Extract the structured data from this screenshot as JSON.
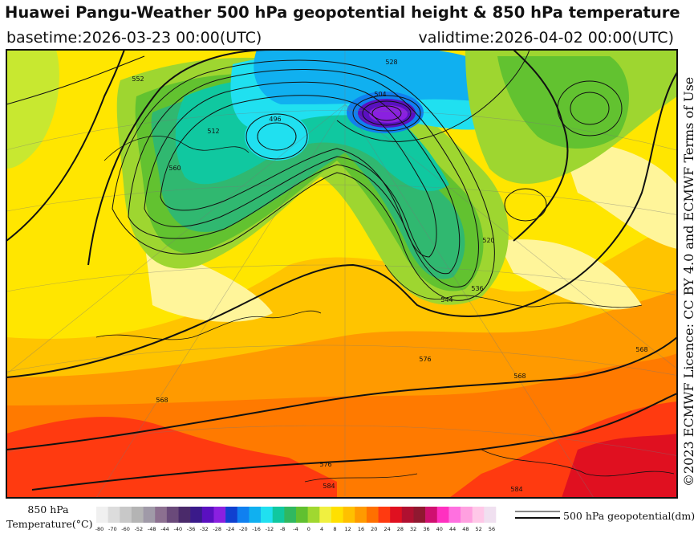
{
  "header": {
    "title": "Huawei Pangu-Weather 500 hPa geopotential height & 850 hPa temperature",
    "basetime": "basetime:2026-03-23 00:00(UTC)",
    "validtime": "validtime:2026-04-02 00:00(UTC)"
  },
  "credit": "©2023 ECMWF Licence: CC BY 4.0 and ECMWF Terms of Use",
  "legend": {
    "temperature_title_line1": "850 hPa",
    "temperature_title_line2": "Temperature(°C)",
    "temperature_ticks": [
      "-80",
      "-70",
      "-60",
      "-52",
      "-48",
      "-44",
      "-40",
      "-36",
      "-32",
      "-28",
      "-24",
      "-20",
      "-16",
      "-12",
      "-8",
      "-4",
      "0",
      "4",
      "8",
      "12",
      "16",
      "20",
      "24",
      "28",
      "32",
      "36",
      "40",
      "44",
      "48",
      "52",
      "56"
    ],
    "temperature_colors": [
      "#f0f0f0",
      "#dcdcdc",
      "#c8c8c8",
      "#b4b4b4",
      "#a09aa8",
      "#8c7090",
      "#6a4a7a",
      "#4a2a6a",
      "#3a1a8a",
      "#5a10c0",
      "#8a20e0",
      "#1040d0",
      "#1080f0",
      "#10b0f0",
      "#20e0f0",
      "#10c8a0",
      "#30b860",
      "#60c030",
      "#a0d830",
      "#f0f040",
      "#ffe000",
      "#ffc000",
      "#ff9a00",
      "#ff7000",
      "#ff3a10",
      "#e01020",
      "#b01030",
      "#901830",
      "#d01070",
      "#ff30c0",
      "#ff70e0",
      "#ffa0e0",
      "#ffc8e8",
      "#f0e0f0"
    ],
    "geopotential_label": "500 hPa geopotential(dm)"
  },
  "map_labels": [
    {
      "text": "528"
    },
    {
      "text": "504"
    },
    {
      "text": "496"
    },
    {
      "text": "552"
    },
    {
      "text": "568"
    },
    {
      "text": "568"
    },
    {
      "text": "576"
    },
    {
      "text": "568"
    },
    {
      "text": "544"
    },
    {
      "text": "536"
    },
    {
      "text": "520"
    },
    {
      "text": "512"
    },
    {
      "text": "576"
    },
    {
      "text": "584"
    },
    {
      "text": "560"
    },
    {
      "text": "584"
    }
  ]
}
